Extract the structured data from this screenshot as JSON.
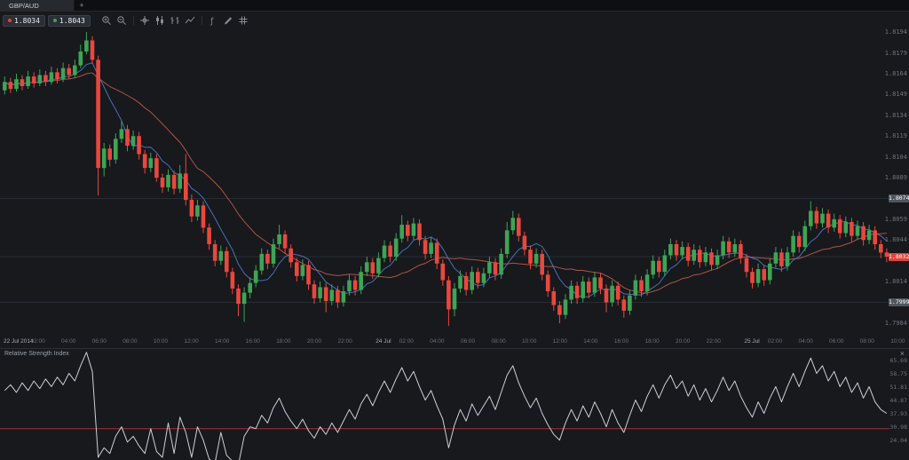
{
  "window": {
    "tab_label": "GBP/AUD",
    "new_tab_label": "+"
  },
  "toolbar": {
    "sell_price": "1.8034",
    "buy_price": "1.8043",
    "icons": [
      "zoom-in",
      "zoom-out",
      "crosshair",
      "candlestick-chart",
      "ohlc-bars",
      "line-chart",
      "indicators",
      "draw",
      "grid"
    ]
  },
  "chart": {
    "price_axis_labels": [
      "1.8194",
      "1.8179",
      "1.8164",
      "1.8149",
      "1.8134",
      "1.8119",
      "1.8104",
      "1.8089",
      "1.8059",
      "1.8044",
      "1.8014",
      "1.7984"
    ],
    "time_axis_labels": [
      "22 Jul 2014",
      "02:00",
      "04:00",
      "06:00",
      "08:00",
      "10:00",
      "12:00",
      "14:00",
      "16:00",
      "18:00",
      "20:00",
      "22:00",
      "24 Jul",
      "02:00",
      "04:00",
      "06:00",
      "08:00",
      "10:00",
      "12:00",
      "14:00",
      "16:00",
      "18:00",
      "20:00",
      "22:00",
      "25 Jul",
      "02:00",
      "04:00",
      "06:00",
      "08:00",
      "10:00"
    ]
  },
  "chart_data": {
    "type": "candlestick",
    "symbol": "GBP/AUD",
    "ylim": [
      1.7975,
      1.8196
    ],
    "colors": {
      "up": "#3fa454",
      "down": "#e8483e",
      "ma_fast": "#4a7cc4",
      "ma_slow": "#c05a4b",
      "grid": "#282d33",
      "rsi_line": "#ccd1d6",
      "rsi_oversold": "#a03232"
    },
    "levels": [
      {
        "price": 1.8074,
        "label": "1.8074",
        "style": "gray"
      },
      {
        "price": 1.8032,
        "label": "1.8032",
        "style": "red"
      },
      {
        "price": 1.7999,
        "label": "1.7999",
        "style": "gray"
      }
    ],
    "candles": [
      [
        1.8152,
        1.8162,
        1.8149,
        1.8158
      ],
      [
        1.8158,
        1.8161,
        1.815,
        1.8153
      ],
      [
        1.8153,
        1.8164,
        1.8151,
        1.816
      ],
      [
        1.816,
        1.8163,
        1.8152,
        1.8155
      ],
      [
        1.8155,
        1.8166,
        1.8153,
        1.8162
      ],
      [
        1.8162,
        1.8165,
        1.8154,
        1.8157
      ],
      [
        1.8157,
        1.8167,
        1.8155,
        1.8163
      ],
      [
        1.8163,
        1.8166,
        1.8155,
        1.8158
      ],
      [
        1.8158,
        1.8169,
        1.8156,
        1.8165
      ],
      [
        1.8165,
        1.8168,
        1.8157,
        1.816
      ],
      [
        1.816,
        1.8172,
        1.8158,
        1.8168
      ],
      [
        1.8168,
        1.8171,
        1.816,
        1.8163
      ],
      [
        1.8163,
        1.8174,
        1.8161,
        1.817
      ],
      [
        1.817,
        1.8185,
        1.8168,
        1.818
      ],
      [
        1.818,
        1.8194,
        1.8178,
        1.8188
      ],
      [
        1.8188,
        1.8191,
        1.8171,
        1.8174
      ],
      [
        1.8174,
        1.8177,
        1.8076,
        1.8096
      ],
      [
        1.8096,
        1.8114,
        1.809,
        1.811
      ],
      [
        1.811,
        1.8113,
        1.8097,
        1.8102
      ],
      [
        1.8102,
        1.8121,
        1.8099,
        1.8117
      ],
      [
        1.8117,
        1.813,
        1.8114,
        1.8124
      ],
      [
        1.8124,
        1.8127,
        1.8108,
        1.8112
      ],
      [
        1.8112,
        1.8123,
        1.8109,
        1.8119
      ],
      [
        1.8119,
        1.8122,
        1.8102,
        1.8106
      ],
      [
        1.8106,
        1.8109,
        1.8092,
        1.8096
      ],
      [
        1.8096,
        1.8107,
        1.8093,
        1.8103
      ],
      [
        1.8103,
        1.8106,
        1.8086,
        1.8089
      ],
      [
        1.8089,
        1.8092,
        1.8078,
        1.8082
      ],
      [
        1.8082,
        1.8095,
        1.8079,
        1.8091
      ],
      [
        1.8091,
        1.8094,
        1.8077,
        1.8081
      ],
      [
        1.8081,
        1.8098,
        1.8078,
        1.8092
      ],
      [
        1.8092,
        1.8106,
        1.8069,
        1.8073
      ],
      [
        1.8073,
        1.8077,
        1.8057,
        1.8061
      ],
      [
        1.8061,
        1.8073,
        1.8058,
        1.8069
      ],
      [
        1.8069,
        1.8072,
        1.8049,
        1.8053
      ],
      [
        1.8053,
        1.8056,
        1.8037,
        1.8041
      ],
      [
        1.8041,
        1.8044,
        1.8025,
        1.8029
      ],
      [
        1.8029,
        1.804,
        1.8026,
        1.8036
      ],
      [
        1.8036,
        1.8039,
        1.8017,
        1.8021
      ],
      [
        1.8021,
        1.8024,
        1.8005,
        1.8009
      ],
      [
        1.8009,
        1.8012,
        1.7989,
        1.7998
      ],
      [
        1.7998,
        1.801,
        1.7985,
        1.8006
      ],
      [
        1.8006,
        1.8017,
        1.8002,
        1.8013
      ],
      [
        1.8013,
        1.8026,
        1.801,
        1.8022
      ],
      [
        1.8022,
        1.8038,
        1.8019,
        1.8034
      ],
      [
        1.8034,
        1.8037,
        1.8023,
        1.8027
      ],
      [
        1.8027,
        1.8045,
        1.8024,
        1.8041
      ],
      [
        1.8041,
        1.8055,
        1.8038,
        1.8048
      ],
      [
        1.8048,
        1.8051,
        1.8034,
        1.8038
      ],
      [
        1.8038,
        1.8041,
        1.8024,
        1.8028
      ],
      [
        1.8028,
        1.8031,
        1.8014,
        1.8018
      ],
      [
        1.8018,
        1.803,
        1.8015,
        1.8026
      ],
      [
        1.8026,
        1.8029,
        1.8008,
        1.8012
      ],
      [
        1.8012,
        1.8015,
        1.7998,
        1.8002
      ],
      [
        1.8002,
        1.8014,
        1.7999,
        1.801
      ],
      [
        1.801,
        1.8013,
        1.7992,
        1.8
      ],
      [
        1.8,
        1.8012,
        1.7997,
        1.8008
      ],
      [
        1.8008,
        1.8011,
        1.7995,
        1.7999
      ],
      [
        1.7999,
        1.8011,
        1.7996,
        1.8007
      ],
      [
        1.8007,
        1.8019,
        1.8004,
        1.8015
      ],
      [
        1.8015,
        1.8018,
        1.8004,
        1.8008
      ],
      [
        1.8008,
        1.8025,
        1.8005,
        1.8021
      ],
      [
        1.8021,
        1.8032,
        1.8018,
        1.8028
      ],
      [
        1.8028,
        1.8031,
        1.8016,
        1.802
      ],
      [
        1.802,
        1.8035,
        1.8017,
        1.8031
      ],
      [
        1.8031,
        1.8044,
        1.8028,
        1.804
      ],
      [
        1.804,
        1.8043,
        1.8028,
        1.8032
      ],
      [
        1.8032,
        1.8049,
        1.8029,
        1.8045
      ],
      [
        1.8045,
        1.8062,
        1.8042,
        1.8055
      ],
      [
        1.8055,
        1.8058,
        1.8043,
        1.8047
      ],
      [
        1.8047,
        1.806,
        1.8044,
        1.8056
      ],
      [
        1.8056,
        1.8059,
        1.804,
        1.8044
      ],
      [
        1.8044,
        1.8047,
        1.803,
        1.8034
      ],
      [
        1.8034,
        1.8046,
        1.8031,
        1.8042
      ],
      [
        1.8042,
        1.8045,
        1.8023,
        1.8027
      ],
      [
        1.8027,
        1.803,
        1.8011,
        1.8015
      ],
      [
        1.8015,
        1.8018,
        1.7982,
        1.7994
      ],
      [
        1.7994,
        1.8013,
        1.7989,
        1.8009
      ],
      [
        1.8009,
        1.8022,
        1.8006,
        1.8018
      ],
      [
        1.8018,
        1.8021,
        1.8004,
        1.8008
      ],
      [
        1.8008,
        1.8025,
        1.8005,
        1.8021
      ],
      [
        1.8021,
        1.8024,
        1.8009,
        1.8013
      ],
      [
        1.8013,
        1.8024,
        1.801,
        1.802
      ],
      [
        1.802,
        1.8032,
        1.8017,
        1.8028
      ],
      [
        1.8028,
        1.8031,
        1.8015,
        1.8019
      ],
      [
        1.8019,
        1.8038,
        1.8016,
        1.8034
      ],
      [
        1.8034,
        1.8057,
        1.8031,
        1.8051
      ],
      [
        1.8051,
        1.8065,
        1.8048,
        1.806
      ],
      [
        1.806,
        1.8063,
        1.8043,
        1.8047
      ],
      [
        1.8047,
        1.805,
        1.8033,
        1.8037
      ],
      [
        1.8037,
        1.804,
        1.8023,
        1.8027
      ],
      [
        1.8027,
        1.8038,
        1.8024,
        1.8034
      ],
      [
        1.8034,
        1.8037,
        1.8015,
        1.8019
      ],
      [
        1.8019,
        1.8022,
        1.8003,
        1.8007
      ],
      [
        1.8007,
        1.801,
        1.7993,
        1.7997
      ],
      [
        1.7997,
        1.8,
        1.7984,
        1.799
      ],
      [
        1.799,
        1.8005,
        1.7987,
        1.8001
      ],
      [
        1.8001,
        1.8015,
        1.7998,
        1.8011
      ],
      [
        1.8011,
        1.8014,
        1.7998,
        1.8002
      ],
      [
        1.8002,
        1.8018,
        1.7999,
        1.8014
      ],
      [
        1.8014,
        1.8017,
        1.8002,
        1.8006
      ],
      [
        1.8006,
        1.8021,
        1.8003,
        1.8017
      ],
      [
        1.8017,
        1.802,
        1.8005,
        1.8009
      ],
      [
        1.8009,
        1.8012,
        1.7992,
        1.7999
      ],
      [
        1.7999,
        1.8015,
        1.7996,
        1.8011
      ],
      [
        1.8011,
        1.8014,
        1.7997,
        1.8001
      ],
      [
        1.8001,
        1.8004,
        1.7988,
        1.7993
      ],
      [
        1.7993,
        1.8008,
        1.799,
        1.8004
      ],
      [
        1.8004,
        1.8019,
        1.8001,
        1.8015
      ],
      [
        1.8015,
        1.8018,
        1.8003,
        1.8007
      ],
      [
        1.8007,
        1.8023,
        1.8004,
        1.8019
      ],
      [
        1.8019,
        1.8033,
        1.8016,
        1.8029
      ],
      [
        1.8029,
        1.8032,
        1.8017,
        1.8021
      ],
      [
        1.8021,
        1.8037,
        1.8018,
        1.8033
      ],
      [
        1.8033,
        1.8045,
        1.803,
        1.8041
      ],
      [
        1.8041,
        1.8044,
        1.8029,
        1.8033
      ],
      [
        1.8033,
        1.8043,
        1.803,
        1.8039
      ],
      [
        1.8039,
        1.8042,
        1.8025,
        1.8029
      ],
      [
        1.8029,
        1.8041,
        1.8026,
        1.8037
      ],
      [
        1.8037,
        1.804,
        1.8024,
        1.8028
      ],
      [
        1.8028,
        1.8039,
        1.8025,
        1.8035
      ],
      [
        1.8035,
        1.8038,
        1.8022,
        1.8026
      ],
      [
        1.8026,
        1.8037,
        1.8023,
        1.8033
      ],
      [
        1.8033,
        1.8047,
        1.803,
        1.8043
      ],
      [
        1.8043,
        1.8046,
        1.8031,
        1.8035
      ],
      [
        1.8035,
        1.8045,
        1.8032,
        1.8041
      ],
      [
        1.8041,
        1.8044,
        1.8027,
        1.8031
      ],
      [
        1.8031,
        1.8034,
        1.8017,
        1.8021
      ],
      [
        1.8021,
        1.8024,
        1.8009,
        1.8013
      ],
      [
        1.8013,
        1.8027,
        1.801,
        1.8023
      ],
      [
        1.8023,
        1.8026,
        1.8011,
        1.8015
      ],
      [
        1.8015,
        1.8031,
        1.8012,
        1.8027
      ],
      [
        1.8027,
        1.8039,
        1.8024,
        1.8035
      ],
      [
        1.8035,
        1.8038,
        1.8021,
        1.8025
      ],
      [
        1.8025,
        1.8039,
        1.8022,
        1.8035
      ],
      [
        1.8035,
        1.8051,
        1.8032,
        1.8047
      ],
      [
        1.8047,
        1.805,
        1.8035,
        1.8039
      ],
      [
        1.8039,
        1.8058,
        1.8036,
        1.8054
      ],
      [
        1.8054,
        1.8072,
        1.8051,
        1.8065
      ],
      [
        1.8065,
        1.8068,
        1.8052,
        1.8056
      ],
      [
        1.8056,
        1.8067,
        1.8053,
        1.8063
      ],
      [
        1.8063,
        1.8066,
        1.8049,
        1.8053
      ],
      [
        1.8053,
        1.8063,
        1.805,
        1.8059
      ],
      [
        1.8059,
        1.8062,
        1.8045,
        1.8049
      ],
      [
        1.8049,
        1.8061,
        1.8046,
        1.8057
      ],
      [
        1.8057,
        1.806,
        1.8043,
        1.8047
      ],
      [
        1.8047,
        1.8058,
        1.8044,
        1.8054
      ],
      [
        1.8054,
        1.8057,
        1.804,
        1.8044
      ],
      [
        1.8044,
        1.8055,
        1.8041,
        1.8051
      ],
      [
        1.8051,
        1.8054,
        1.8037,
        1.8041
      ],
      [
        1.8041,
        1.8044,
        1.8031,
        1.8035
      ],
      [
        1.8035,
        1.8038,
        1.8028,
        1.8032
      ]
    ],
    "rsi": {
      "oversold_level": 30,
      "values": [
        50,
        53,
        49,
        54,
        50,
        55,
        51,
        56,
        52,
        57,
        53,
        59,
        55,
        63,
        70,
        60,
        15,
        20,
        17,
        26,
        31,
        23,
        26,
        21,
        17,
        30,
        18,
        15,
        33,
        17,
        36,
        28,
        15,
        31,
        24,
        14,
        12,
        28,
        16,
        13,
        11,
        26,
        31,
        30,
        37,
        33,
        41,
        46,
        39,
        34,
        30,
        35,
        29,
        25,
        31,
        27,
        33,
        28,
        34,
        40,
        35,
        43,
        48,
        42,
        49,
        55,
        49,
        56,
        62,
        55,
        60,
        52,
        45,
        50,
        42,
        35,
        20,
        32,
        40,
        34,
        43,
        37,
        42,
        47,
        40,
        49,
        58,
        63,
        54,
        47,
        41,
        46,
        38,
        32,
        27,
        24,
        33,
        40,
        34,
        42,
        36,
        44,
        38,
        31,
        40,
        33,
        28,
        37,
        45,
        39,
        47,
        53,
        46,
        53,
        58,
        51,
        55,
        47,
        53,
        45,
        51,
        44,
        50,
        57,
        50,
        55,
        47,
        41,
        36,
        44,
        38,
        46,
        52,
        44,
        52,
        59,
        52,
        60,
        67,
        59,
        63,
        55,
        60,
        52,
        57,
        49,
        54,
        46,
        52,
        44,
        40,
        38
      ]
    }
  },
  "rsi_panel": {
    "title": "Relative Strength Index",
    "close_label": "×",
    "axis_labels": [
      "65.69",
      "58.75",
      "51.81",
      "44.87",
      "37.93",
      "30.98",
      "24.04"
    ]
  }
}
